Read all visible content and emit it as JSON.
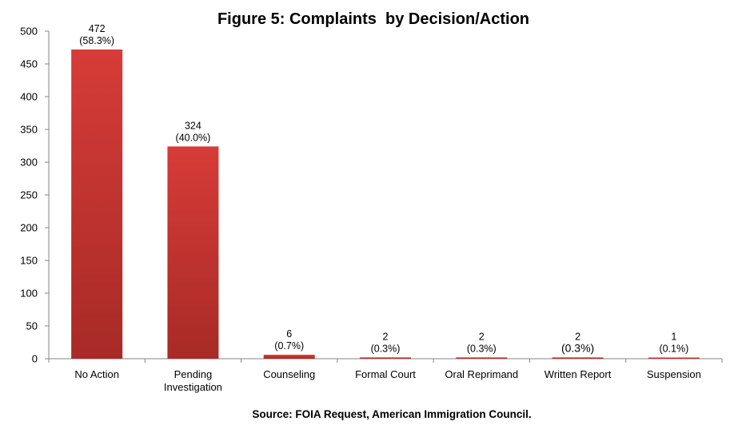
{
  "chart_data": {
    "type": "bar",
    "title": "Figure 5: Complaints  by Decision/Action",
    "categories": [
      [
        "No Action"
      ],
      [
        "Pending",
        "Investigation"
      ],
      [
        "Counseling"
      ],
      [
        "Formal Court"
      ],
      [
        "Oral Reprimand"
      ],
      [
        "Written Report"
      ],
      [
        "Suspension"
      ]
    ],
    "values": [
      472,
      324,
      6,
      2,
      2,
      2,
      1
    ],
    "data_labels": [
      [
        "472",
        "(58.3%)"
      ],
      [
        "324",
        "(40.0%)"
      ],
      [
        "6",
        "(0.7%)"
      ],
      [
        "2",
        "(0.3%)"
      ],
      [
        "2",
        "(0.3%)"
      ],
      [
        "2",
        "(0.3%)"
      ],
      [
        "1",
        "(0.1%)"
      ]
    ],
    "ylim": [
      0,
      500
    ],
    "yticks": [
      0,
      50,
      100,
      150,
      200,
      250,
      300,
      350,
      400,
      450,
      500
    ],
    "grid": false,
    "xlabel": "",
    "ylabel": "",
    "bar_color": "#cc3333",
    "source": "Source: FOIA Request, American Immigration Council."
  }
}
